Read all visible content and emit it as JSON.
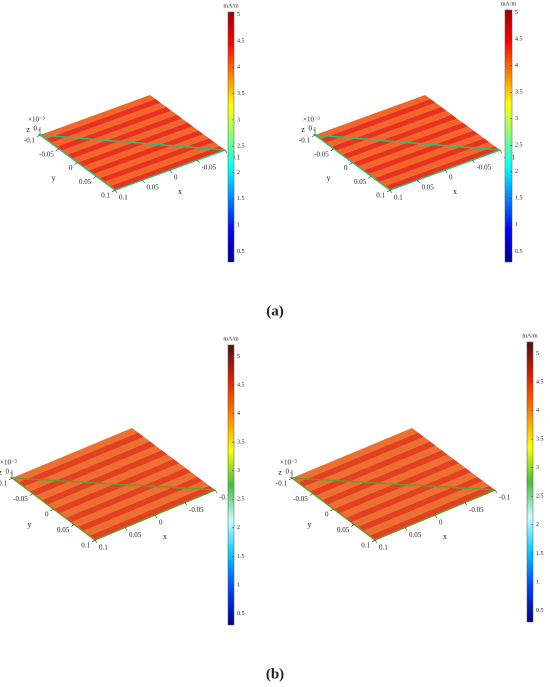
{
  "chart_data": [
    {
      "type": "surface",
      "xlabel": "x",
      "ylabel": "y",
      "zlabel": "z",
      "z_multiplier": "×10⁻³",
      "xlim": [
        -0.1,
        0.1
      ],
      "xticks": [
        -0.1,
        -0.05,
        0,
        0.05,
        0.1
      ],
      "ylim": [
        -0.1,
        0.1
      ],
      "yticks": [
        -0.1,
        -0.05,
        0,
        0.05,
        0.1
      ],
      "zticks": [
        0
      ],
      "surface_colors": [
        "#e8321f",
        "#f2662a"
      ],
      "edge_color": "#2cc070",
      "colorbar": {
        "label": "mA/m",
        "lim": [
          0.3,
          5.05
        ],
        "ticks": [
          0.5,
          1,
          1.5,
          2,
          2.5,
          3,
          3.5,
          4,
          4.5,
          5
        ],
        "colormap": [
          "#00008f",
          "#0000ff",
          "#0080ff",
          "#00ffff",
          "#80ff80",
          "#ffff00",
          "#ff8000",
          "#ff0000",
          "#a00000"
        ]
      }
    },
    {
      "type": "surface",
      "xlabel": "x",
      "ylabel": "y",
      "zlabel": "z",
      "z_multiplier": "×10⁻³",
      "xlim": [
        -0.1,
        0.1
      ],
      "xticks": [
        -0.1,
        -0.05,
        0,
        0.05,
        0.1
      ],
      "ylim": [
        -0.1,
        0.1
      ],
      "yticks": [
        -0.1,
        -0.05,
        0,
        0.05,
        0.1
      ],
      "zticks": [
        0
      ],
      "surface_colors": [
        "#e8321f",
        "#f2662a"
      ],
      "edge_color": "#2cc070",
      "colorbar": {
        "label": "mA/m",
        "lim": [
          0.3,
          5.05
        ],
        "ticks": [
          0.5,
          1,
          1.5,
          2,
          2.5,
          3,
          3.5,
          4,
          4.5,
          5
        ],
        "colormap": [
          "#00008f",
          "#0000ff",
          "#0080ff",
          "#00ffff",
          "#80ff80",
          "#ffff00",
          "#ff8000",
          "#ff0000",
          "#a00000"
        ]
      }
    },
    {
      "type": "surface",
      "xlabel": "x",
      "ylabel": "y",
      "zlabel": "z",
      "z_multiplier": "×10⁻³",
      "xlim": [
        -0.1,
        0.1
      ],
      "xticks": [
        -0.1,
        -0.05,
        0,
        0.05,
        0.1
      ],
      "ylim": [
        -0.1,
        0.1
      ],
      "yticks": [
        -0.1,
        -0.05,
        0,
        0.05,
        0.1
      ],
      "zticks": [
        0
      ],
      "surface_colors": [
        "#e2401f",
        "#ee7030"
      ],
      "edge_color": "#6a9a30",
      "colorbar": {
        "label": "mA/m",
        "lim": [
          0.3,
          5.2
        ],
        "ticks": [
          0.5,
          1,
          1.5,
          2,
          2.5,
          3,
          3.5,
          4,
          4.5,
          5
        ],
        "colormap": [
          "#000080",
          "#0040ff",
          "#00c8ff",
          "#c8ffff",
          "#40c040",
          "#ffff00",
          "#ff8000",
          "#e02000",
          "#501010"
        ]
      }
    },
    {
      "type": "surface",
      "xlabel": "x",
      "ylabel": "y",
      "zlabel": "z",
      "z_multiplier": "×10⁻³",
      "xlim": [
        -0.1,
        0.1
      ],
      "xticks": [
        -0.1,
        -0.05,
        0,
        0.05,
        0.1
      ],
      "ylim": [
        -0.1,
        0.1
      ],
      "yticks": [
        -0.1,
        -0.05,
        0,
        0.05,
        0.1
      ],
      "zticks": [
        0
      ],
      "surface_colors": [
        "#e2401f",
        "#ee7030"
      ],
      "edge_color": "#6a9a30",
      "colorbar": {
        "label": "mA/m",
        "lim": [
          0.3,
          5.2
        ],
        "ticks": [
          0.5,
          1,
          1.5,
          2,
          2.5,
          3,
          3.5,
          4,
          4.5,
          5
        ],
        "colormap": [
          "#000080",
          "#0040ff",
          "#00c8ff",
          "#c8ffff",
          "#40c040",
          "#ffff00",
          "#ff8000",
          "#e02000",
          "#501010"
        ]
      }
    }
  ],
  "captions": [
    "(a)",
    "(b)"
  ]
}
